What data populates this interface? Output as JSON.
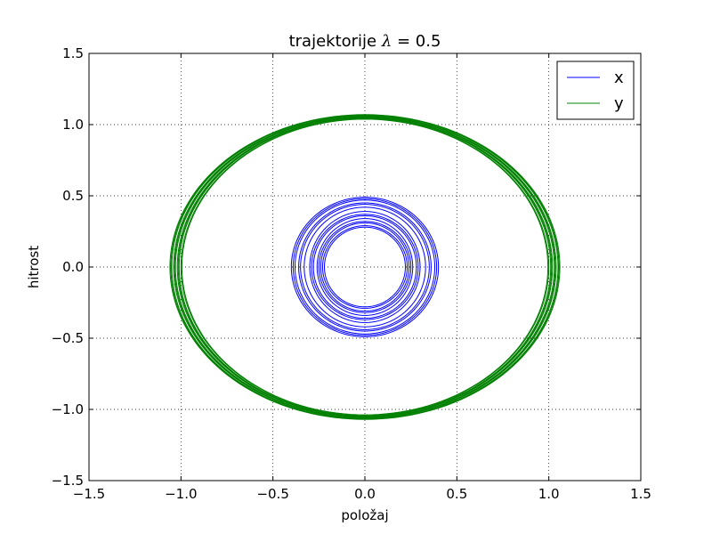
{
  "chart_data": {
    "type": "line",
    "title": "trajektorije λ = 0.5",
    "title_prefix": "trajektorije ",
    "title_math": "λ",
    "title_suffix": " = 0.5",
    "xlabel": "položaj",
    "ylabel": "hitrost",
    "xlim": [
      -1.5,
      1.5
    ],
    "ylim": [
      -1.5,
      1.5
    ],
    "xticks": [
      -1.5,
      -1.0,
      -0.5,
      0.0,
      0.5,
      1.0,
      1.5
    ],
    "yticks": [
      -1.5,
      -1.0,
      -0.5,
      0.0,
      0.5,
      1.0,
      1.5
    ],
    "xtick_labels": [
      "−1.5",
      "−1.0",
      "−0.5",
      "0.0",
      "0.5",
      "1.0",
      "1.5"
    ],
    "ytick_labels": [
      "−1.5",
      "−1.0",
      "−0.5",
      "0.0",
      "0.5",
      "1.0",
      "1.5"
    ],
    "grid": true,
    "legend_position": "top-right",
    "series": [
      {
        "name": "x",
        "color": "#0000ff",
        "shape": "nested closed loops around origin",
        "loops": [
          {
            "rx": 0.4,
            "ry": 0.49
          },
          {
            "rx": 0.38,
            "ry": 0.47
          },
          {
            "rx": 0.35,
            "ry": 0.44
          },
          {
            "rx": 0.33,
            "ry": 0.42
          },
          {
            "rx": 0.3,
            "ry": 0.39
          },
          {
            "rx": 0.28,
            "ry": 0.36
          },
          {
            "rx": 0.26,
            "ry": 0.34
          },
          {
            "rx": 0.24,
            "ry": 0.31
          },
          {
            "rx": 0.23,
            "ry": 0.29
          },
          {
            "rx": 0.22,
            "ry": 0.28
          },
          {
            "rx": 0.39,
            "ry": 0.48
          },
          {
            "rx": 0.36,
            "ry": 0.45
          },
          {
            "rx": 0.29,
            "ry": 0.37
          },
          {
            "rx": 0.25,
            "ry": 0.32
          }
        ]
      },
      {
        "name": "y",
        "color": "#008000",
        "shape": "nested closed loops around origin",
        "loops": [
          {
            "rx": 1.06,
            "ry": 1.07
          },
          {
            "rx": 1.05,
            "ry": 1.065
          },
          {
            "rx": 1.04,
            "ry": 1.06
          },
          {
            "rx": 1.03,
            "ry": 1.055
          },
          {
            "rx": 1.02,
            "ry": 1.05
          },
          {
            "rx": 1.01,
            "ry": 1.045
          },
          {
            "rx": 1.0,
            "ry": 1.04
          },
          {
            "rx": 1.055,
            "ry": 1.068
          },
          {
            "rx": 1.035,
            "ry": 1.058
          },
          {
            "rx": 1.015,
            "ry": 1.048
          },
          {
            "rx": 0.995,
            "ry": 1.038
          }
        ]
      }
    ]
  }
}
